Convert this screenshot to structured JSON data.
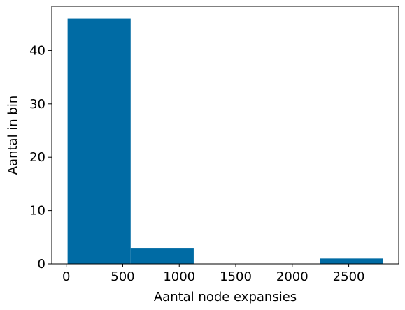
{
  "chart_data": {
    "type": "histogram",
    "bins": [
      {
        "start": 12,
        "end": 570,
        "count": 46
      },
      {
        "start": 570,
        "end": 1128,
        "count": 3
      },
      {
        "start": 1128,
        "end": 1686,
        "count": 0
      },
      {
        "start": 1686,
        "end": 2244,
        "count": 0
      },
      {
        "start": 2244,
        "end": 2802,
        "count": 1
      }
    ],
    "xlabel": "Aantal node expansies",
    "ylabel": "Aantal in bin",
    "xlim": [
      -128,
      2942
    ],
    "ylim": [
      0,
      48.3
    ],
    "xticks": [
      0,
      500,
      1000,
      1500,
      2000,
      2500
    ],
    "yticks": [
      0,
      10,
      20,
      30,
      40
    ],
    "bar_color": "#006ba4",
    "grid": false
  }
}
